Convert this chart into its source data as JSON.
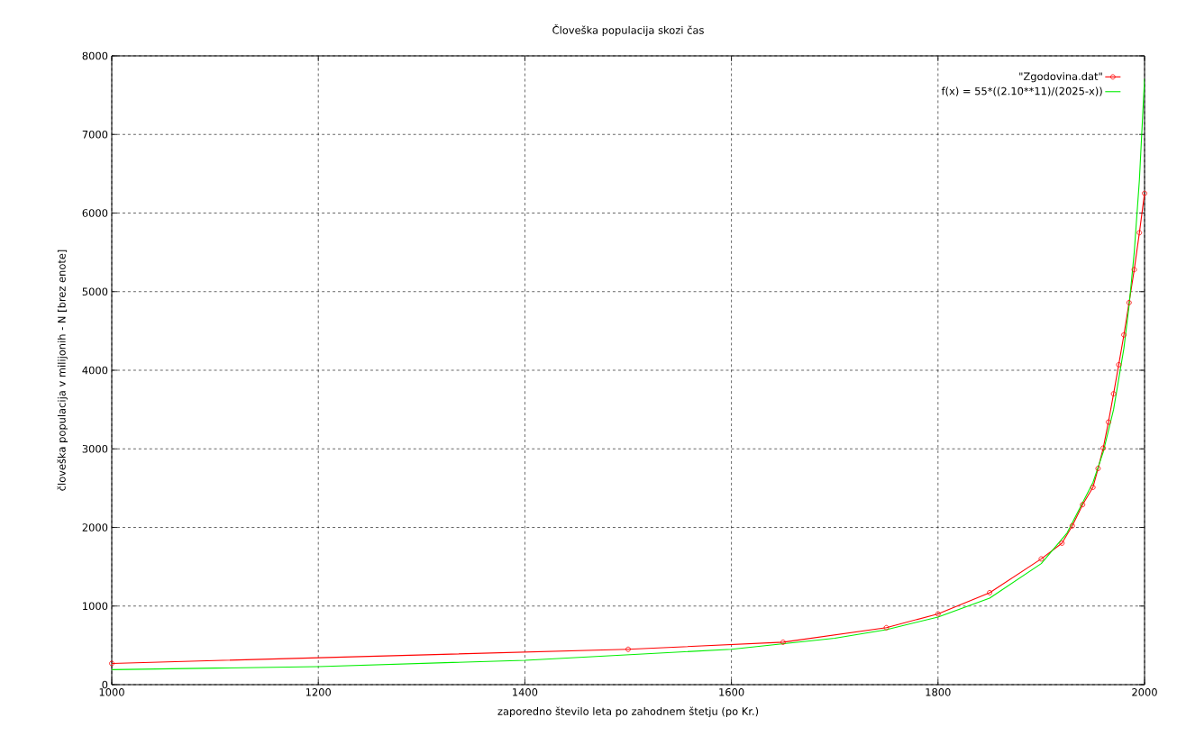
{
  "chart_data": {
    "type": "line",
    "title": "Človeška populacija skozi čas",
    "xlabel": "zaporedno število leta po zahodnem štetju (po Kr.)",
    "ylabel": "človeška populacija v milijonih - N [brez enote]",
    "series": [
      {
        "name": "\"Zgodovina.dat\"",
        "color": "#ff0000",
        "marker": "circle",
        "x": [
          1000,
          1500,
          1650,
          1750,
          1800,
          1850,
          1900,
          1920,
          1930,
          1940,
          1950,
          1955,
          1960,
          1965,
          1970,
          1975,
          1980,
          1985,
          1990,
          1995,
          2000
        ],
        "values": [
          270,
          450,
          540,
          725,
          900,
          1170,
          1600,
          1800,
          2020,
          2290,
          2510,
          2750,
          3010,
          3340,
          3700,
          4070,
          4450,
          4860,
          5280,
          5750,
          6250
        ]
      },
      {
        "name": "f(x) = 55*((2.10**11)/(2025-x))",
        "color": "#00ee00",
        "marker": "none",
        "x": [
          1000,
          1200,
          1400,
          1600,
          1700,
          1750,
          1800,
          1850,
          1900,
          1925,
          1950,
          1960,
          1970,
          1980,
          1985,
          1990,
          1995,
          2000
        ],
        "values": [
          190,
          230,
          310,
          450,
          590,
          700,
          860,
          1100,
          1540,
          1930,
          2570,
          2960,
          3500,
          4280,
          4820,
          5500,
          6420,
          7710
        ]
      }
    ],
    "xlim": [
      1000,
      2000
    ],
    "xticks": [
      1000,
      1200,
      1400,
      1600,
      1800,
      2000
    ],
    "ylim": [
      0,
      8000
    ],
    "yticks": [
      0,
      1000,
      2000,
      3000,
      4000,
      5000,
      6000,
      7000,
      8000
    ],
    "grid": true,
    "legend": "top right",
    "line_style": "solid"
  }
}
